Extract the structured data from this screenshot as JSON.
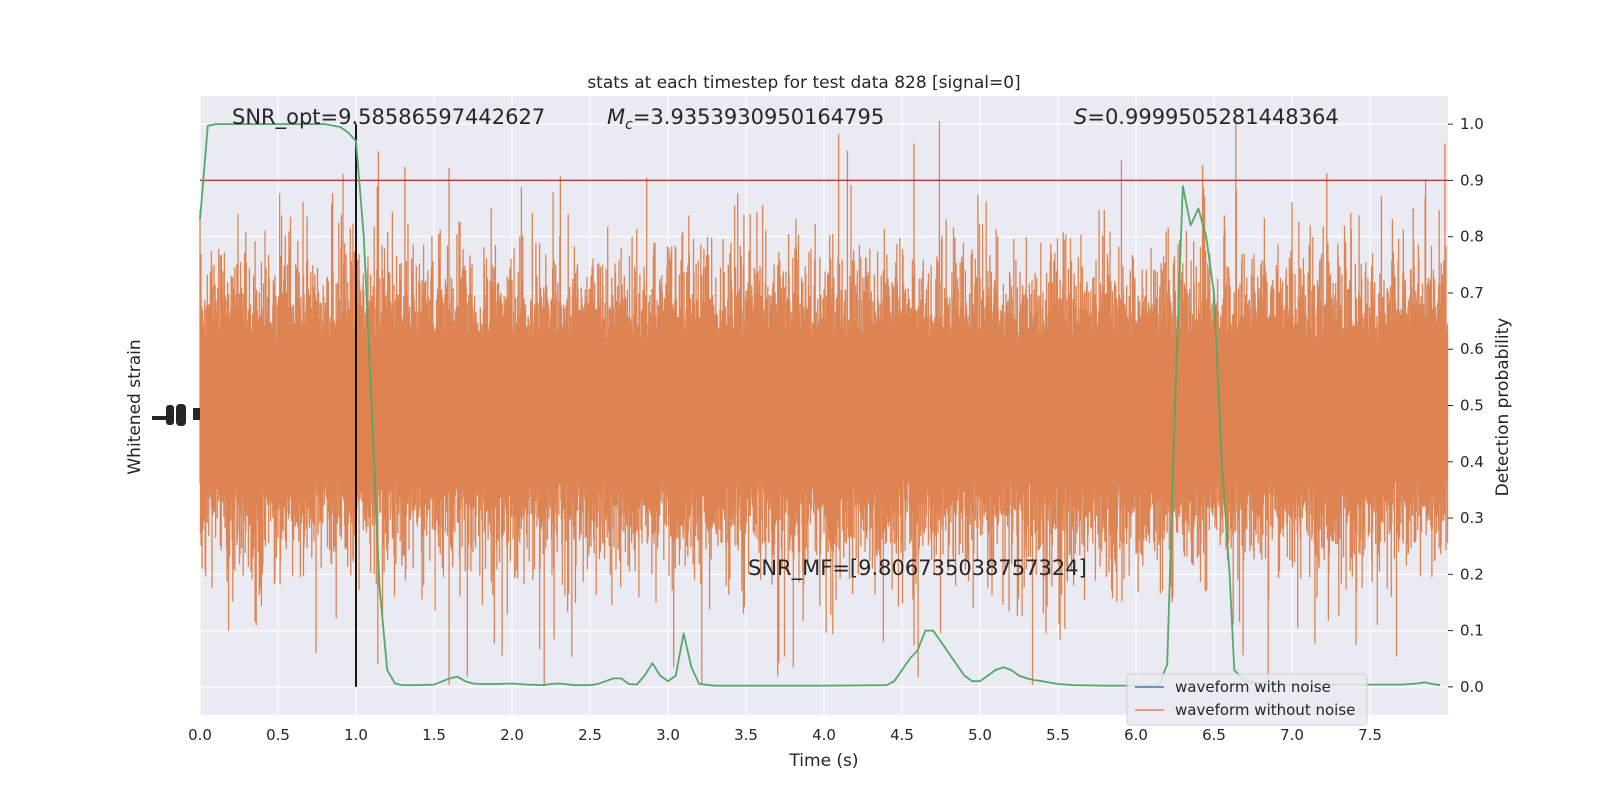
{
  "chart_data": {
    "type": "line",
    "title": "stats at each timestep for test data 828 [signal=0]",
    "xlabel": "Time (s)",
    "ylabel_left": "Whitened strain",
    "ylabel_right": "Detection probability",
    "xlim": [
      0.0,
      8.0
    ],
    "ylim_right": [
      -0.05,
      1.05
    ],
    "x_ticks": [
      "0.0",
      "0.5",
      "1.0",
      "1.5",
      "2.0",
      "2.5",
      "3.0",
      "3.5",
      "4.0",
      "4.5",
      "5.0",
      "5.5",
      "6.0",
      "6.5",
      "7.0",
      "7.5"
    ],
    "right_ticks": [
      "0.0",
      "0.1",
      "0.2",
      "0.3",
      "0.4",
      "0.5",
      "0.6",
      "0.7",
      "0.8",
      "0.9",
      "1.0"
    ],
    "grid": true,
    "annotations": {
      "snr_opt": "SNR_opt=9.585865974426​27",
      "mc_symbol": "M",
      "mc_sub": "c",
      "mc_value": "=3.9353930950164795",
      "s_symbol": "S",
      "s_value": "=0.9999505281448364",
      "snr_mf": "SNR_MF=[9.806735038757324]"
    },
    "threshold": {
      "y": 0.9,
      "color": "#c03d3e"
    },
    "event_time": {
      "x": 1.0,
      "color": "#000000"
    },
    "series": [
      {
        "name": "waveform with noise",
        "color": "#4c72b0"
      },
      {
        "name": "waveform without noise",
        "color": "#dd8452"
      },
      {
        "color": "#55a868",
        "x": [
          0.0,
          0.05,
          0.1,
          0.2,
          0.3,
          0.4,
          0.5,
          0.6,
          0.7,
          0.8,
          0.9,
          0.95,
          1.0,
          1.05,
          1.1,
          1.15,
          1.2,
          1.25,
          1.3,
          1.4,
          1.5,
          1.6,
          1.65,
          1.7,
          1.75,
          1.8,
          1.9,
          2.0,
          2.1,
          2.2,
          2.25,
          2.3,
          2.4,
          2.5,
          2.55,
          2.6,
          2.65,
          2.7,
          2.75,
          2.8,
          2.85,
          2.9,
          2.95,
          3.0,
          3.05,
          3.1,
          3.15,
          3.2,
          3.3,
          3.5,
          4.0,
          4.4,
          4.45,
          4.5,
          4.55,
          4.6,
          4.65,
          4.7,
          4.75,
          4.8,
          4.85,
          4.9,
          4.95,
          5.0,
          5.05,
          5.1,
          5.15,
          5.2,
          5.25,
          5.3,
          5.35,
          5.4,
          5.5,
          5.6,
          5.8,
          6.0,
          6.1,
          6.15,
          6.2,
          6.25,
          6.3,
          6.35,
          6.4,
          6.45,
          6.5,
          6.55,
          6.6,
          6.63,
          6.7,
          6.8,
          7.0,
          7.5,
          7.7,
          7.8,
          7.85,
          7.9,
          7.95
        ],
        "y": [
          0.83,
          0.997,
          1.0,
          1.0,
          1.0,
          1.0,
          1.0,
          1.0,
          1.0,
          1.0,
          0.995,
          0.985,
          0.97,
          0.8,
          0.5,
          0.18,
          0.03,
          0.006,
          0.003,
          0.003,
          0.004,
          0.015,
          0.018,
          0.01,
          0.006,
          0.005,
          0.005,
          0.006,
          0.004,
          0.003,
          0.005,
          0.006,
          0.003,
          0.003,
          0.005,
          0.01,
          0.015,
          0.015,
          0.005,
          0.004,
          0.02,
          0.042,
          0.02,
          0.01,
          0.02,
          0.095,
          0.035,
          0.005,
          0.002,
          0.002,
          0.002,
          0.003,
          0.01,
          0.03,
          0.05,
          0.065,
          0.1,
          0.1,
          0.08,
          0.06,
          0.04,
          0.02,
          0.01,
          0.01,
          0.02,
          0.03,
          0.035,
          0.03,
          0.02,
          0.015,
          0.012,
          0.01,
          0.005,
          0.003,
          0.002,
          0.002,
          0.003,
          0.005,
          0.04,
          0.5,
          0.89,
          0.82,
          0.85,
          0.8,
          0.7,
          0.4,
          0.2,
          0.03,
          0.01,
          0.006,
          0.004,
          0.004,
          0.004,
          0.006,
          0.008,
          0.005,
          0.003
        ]
      }
    ]
  }
}
